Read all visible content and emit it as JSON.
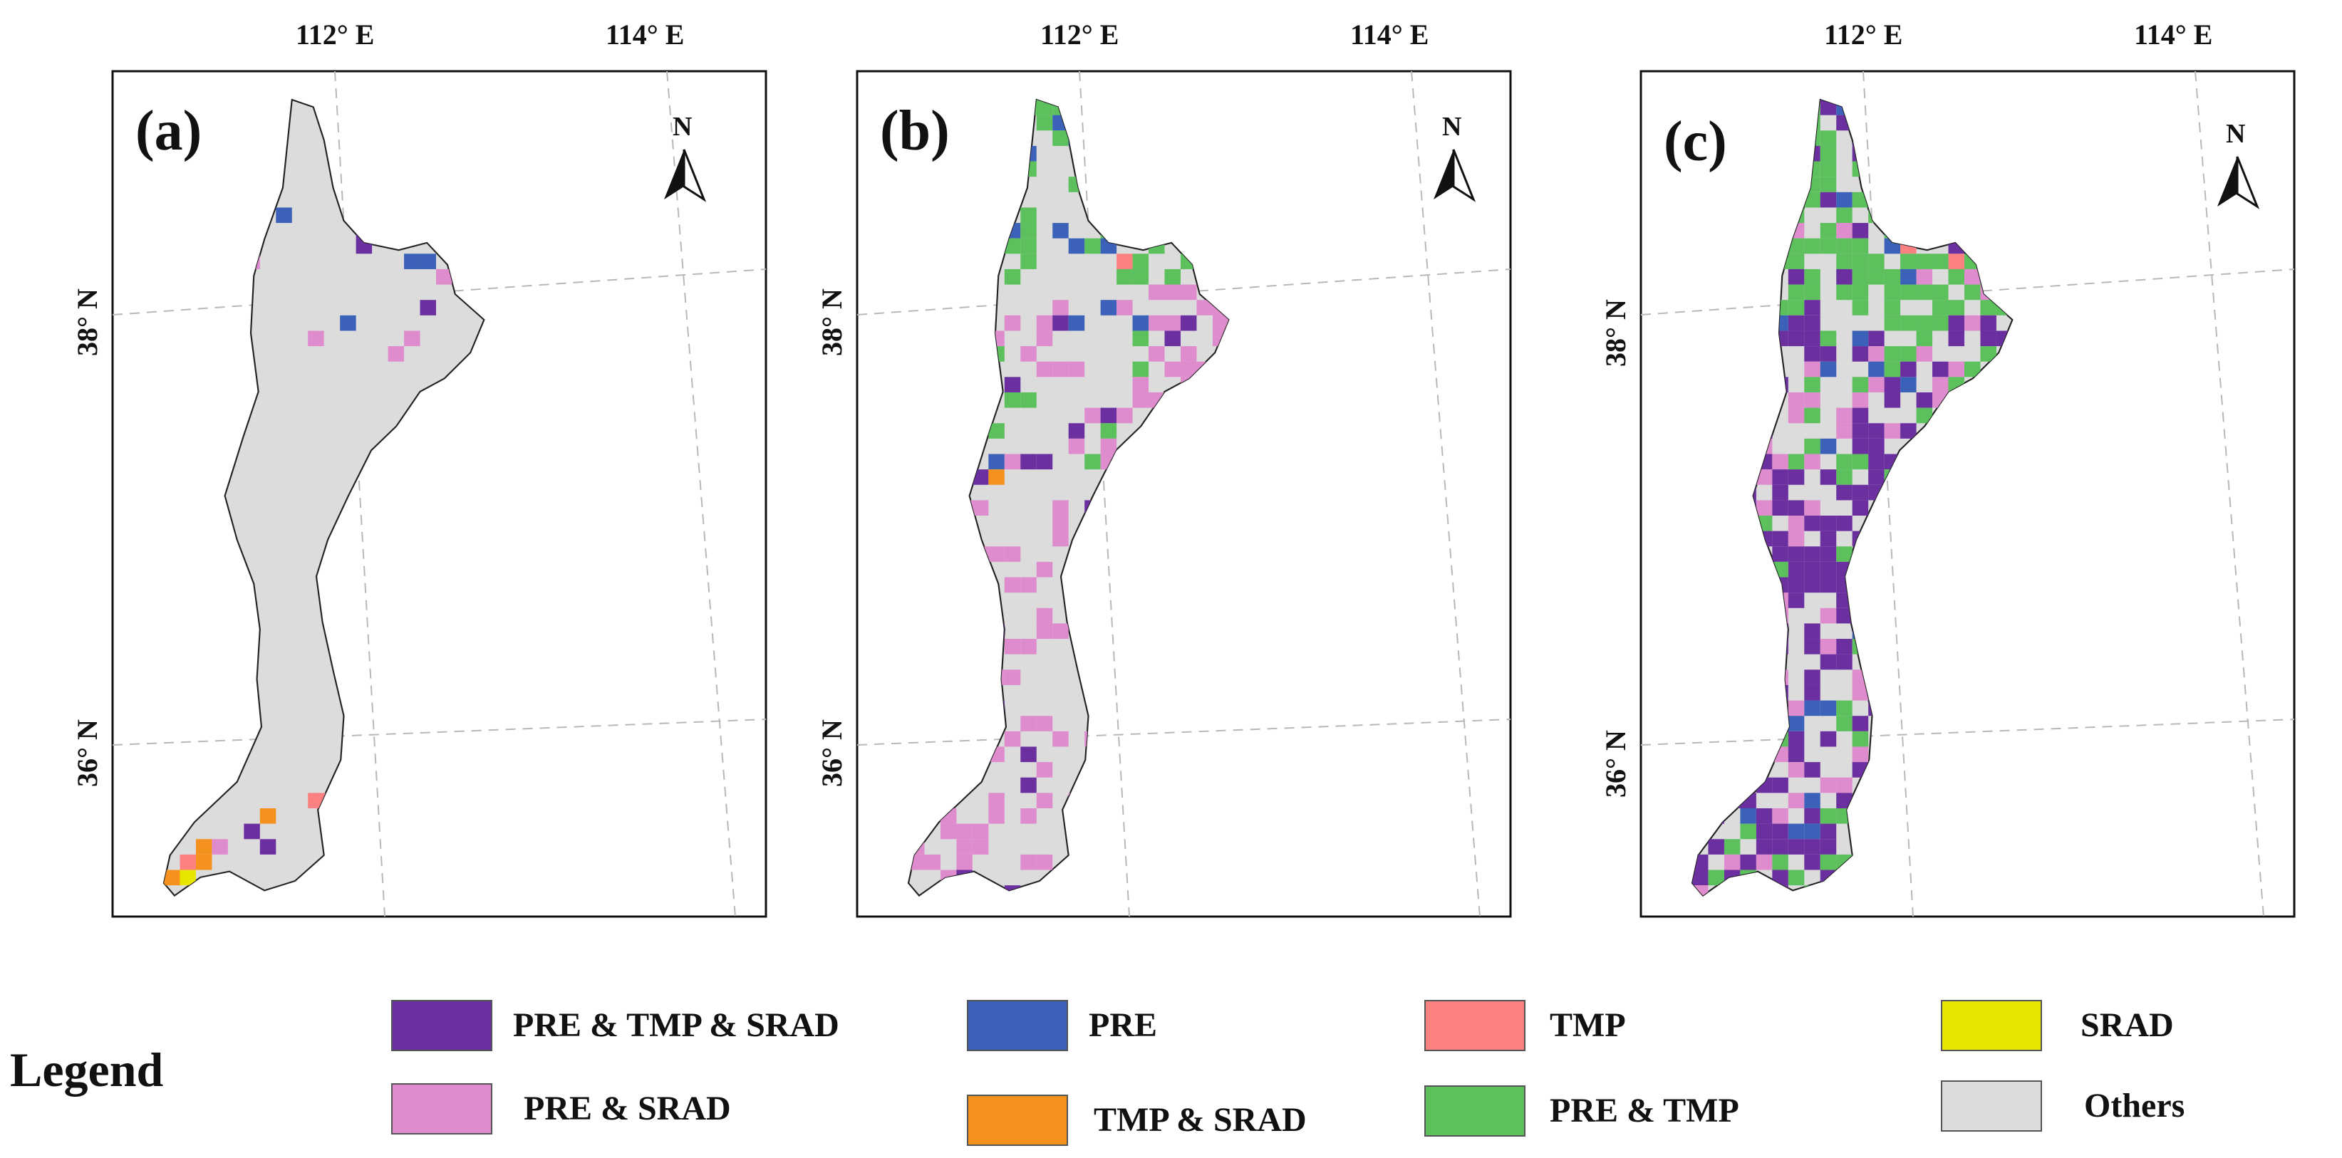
{
  "panels": [
    {
      "label": "(a)",
      "lon_labels": [
        "112° E",
        "114° E"
      ],
      "lat_labels": [
        "38° N",
        "36° N"
      ],
      "north": "N"
    },
    {
      "label": "(b)",
      "lon_labels": [
        "112° E",
        "114° E"
      ],
      "lat_labels": [
        "38° N",
        "36° N"
      ],
      "north": "N"
    },
    {
      "label": "(c)",
      "lon_labels": [
        "112° E",
        "114° E"
      ],
      "lat_labels": [
        "38° N",
        "36° N"
      ],
      "north": "N"
    }
  ],
  "legend": {
    "title": "Legend",
    "items": [
      {
        "label": "PRE & TMP & SRAD",
        "color": "#6b2fa0"
      },
      {
        "label": "PRE & SRAD",
        "color": "#de8ccd"
      },
      {
        "label": "PRE",
        "color": "#3c61b8"
      },
      {
        "label": "TMP & SRAD",
        "color": "#f5921e"
      },
      {
        "label": "TMP",
        "color": "#fb8080"
      },
      {
        "label": "PRE & TMP",
        "color": "#5cc05c"
      },
      {
        "label": "SRAD",
        "color": "#e8e600"
      },
      {
        "label": "Others",
        "color": "#dcdcdc"
      }
    ]
  },
  "colors": {
    "basin_fill": "#dcdcdc",
    "basin_outline": "#222222",
    "graticule": "#b8b8b8",
    "frame": "#111111"
  }
}
